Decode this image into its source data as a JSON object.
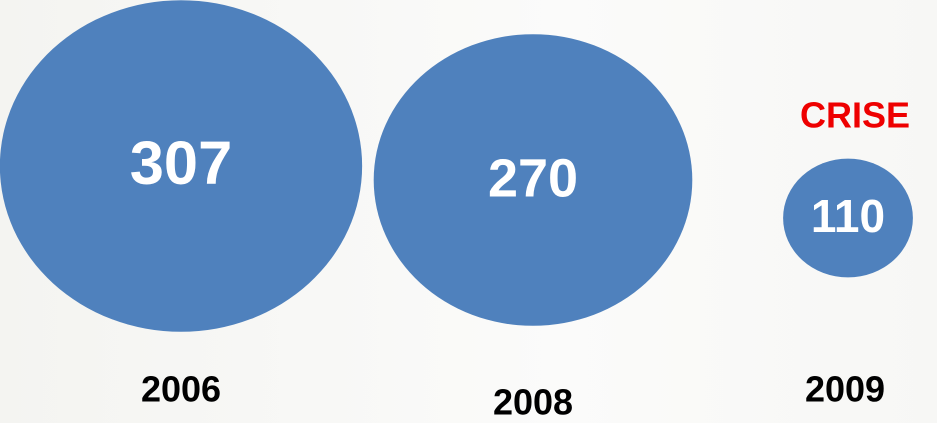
{
  "chart_data": {
    "type": "bubble",
    "categories": [
      "2006",
      "2008",
      "2009"
    ],
    "values": [
      307,
      270,
      110
    ],
    "color": "#4f81bd",
    "annotation": "CRISE",
    "annotation_color": "#ee0000"
  }
}
